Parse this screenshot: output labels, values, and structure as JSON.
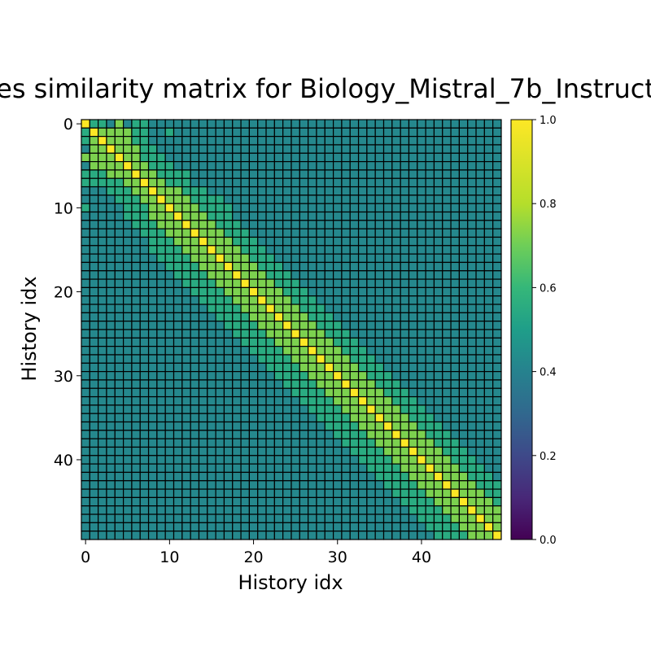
{
  "chart_data": {
    "type": "heatmap",
    "title": "es similarity matrix for Biology_Mistral_7b_Instruct",
    "xlabel": "History idx",
    "ylabel": "History idx",
    "size": 50,
    "x_ticks": [
      "0",
      "10",
      "20",
      "30",
      "40"
    ],
    "y_ticks": [
      "0",
      "10",
      "20",
      "30",
      "40"
    ],
    "colorbar": {
      "vmin": 0.0,
      "vmax": 1.0,
      "ticks": [
        "0.0",
        "0.2",
        "0.4",
        "0.6",
        "0.8",
        "1.0"
      ]
    },
    "colormap": "viridis",
    "cell_edge_color": "#000000",
    "diagonal_value": 1.0,
    "matrix_rows": [
      "SMMLHLMMLLLLLLLLLLLLLLLLLLLLLLLLLLLLLLLLLLLLLLLLLL",
      "MSHHHHMMLLMLLLLLLLLLLLLLLLLLLLLLLLLLLLLLLLLLLLLLLL",
      "MHSHHHMMLLLLLLLLLLLLLLLLLLLLLLLLLLLLLLLLLLLLLLLLLL",
      "LHHSHHHMMLLLLLLLLLLLLLLLLLLLLLLLLLLLLLLLLLLLLLLLLL",
      "HHHHSHHMMMLLLLLLLLLLLLLLLLLLLLLLLLLLLLLLLLLLLLLLLL",
      "LHHHHSHHMMMLLLLLLLLLLLLLLLLLLLLLLLLLLLLLLLLLLLLLLL",
      "MMMHHHSHHMMMMLLLLLLLLLLLLLLLLLLLLLLLLLLLLLLLLLLLLL",
      "MMMMMHHSHHMMMLLLLLLLLLLLLLLLLLLLLLLLLLLLLLLLLLLLLL",
      "LLLMMMHHSHHHMMMLLLLLLLLLLLLLLLLLLLLLLLLLLLLLLLLLLL",
      "LLLLMMMHHSHHHMMMMLLLLLLLLLLLLLLLLLLLLLLLLLLLLLLLLL",
      "MLLLLMMMHHSHHHMMMMLLLLLLLLLLLLLLLLLLLLLLLLLLLLLLLL",
      "LLLLLMMMHHHSHHHMMMLLLLLLLLLLLLLLLLLLLLLLLLLLLLLLLL",
      "LLLLLLMMMHHHSHHHMMMLLLLLLLLLLLLLLLLLLLLLLLLLLLLLLL",
      "LLLLLLLMMMHHHSHHHMMMLLLLLLLLLLLLLLLLLLLLLLLLLLLLLL",
      "LLLLLLLLMMMHHHSHHHMMMLLLLLLLLLLLLLLLLLLLLLLLLLLLLL",
      "LLLLLLLLMMMMHHHSHHHMMMLLLLLLLLLLLLLLLLLLLLLLLLLLLL",
      "LLLLLLLLLMMMMHHHSHHHMMMLLLLLLLLLLLLLLLLLLLLLLLLLLL",
      "LLLLLLLLLLMMMMHHHSHHHMMMLLLLLLLLLLLLLLLLLLLLLLLLLL",
      "LLLLLLLLLLLMMMMHHHSHHHMMMLLLLLLLLLLLLLLLLLLLLLLLLL",
      "LLLLLLLLLLLLMMMMHHHSHHHMMMLLLLLLLLLLLLLLLLLLLLLLLL",
      "LLLLLLLLLLLLLMMMMHHHSHHHMMMLLLLLLLLLLLLLLLLLLLLLLL",
      "LLLLLLLLLLLLLLMMMMHHHSHHHMMMLLLLLLLLLLLLLLLLLLLLLL",
      "LLLLLLLLLLLLLLLMMMMHHHSHHHMMMLLLLLLLLLLLLLLLLLLLLL",
      "LLLLLLLLLLLLLLLLMMMMHHHSHHHMMMLLLLLLLLLLLLLLLLLLLL",
      "LLLLLLLLLLLLLLLLLMMMMHHHSHHHMMMLLLLLLLLLLLLLLLLLLL",
      "LLLLLLLLLLLLLLLLLLMMMMHHHSHHHMMMLLLLLLLLLLLLLLLLLL",
      "LLLLLLLLLLLLLLLLLLLMMMMHHHSHHHMMMLLLLLLLLLLLLLLLLL",
      "LLLLLLLLLLLLLLLLLLLLMMMMHHHSHHHMMMLLLLLLLLLLLLLLLL",
      "LLLLLLLLLLLLLLLLLLLLLMMMMHHHSHHHMMMLLLLLLLLLLLLLLL",
      "LLLLLLLLLLLLLLLLLLLLLLMMMMHHHSHHHMMMLLLLLLLLLLLLLL",
      "LLLLLLLLLLLLLLLLLLLLLLLMMMMHHHSHHHMMMLLLLLLLLLLLLL",
      "LLLLLLLLLLLLLLLLLLLLLLLLMMMMHHHSHHHMMMLLLLLLLLLLLL",
      "LLLLLLLLLLLLLLLLLLLLLLLLLMMMMHHHSHHHMMMLLLLLLLLLLL",
      "LLLLLLLLLLLLLLLLLLLLLLLLLLMMMMHHHSHHHMMMLLLLLLLLLL",
      "LLLLLLLLLLLLLLLLLLLLLLLLLLLMMMMHHHSHHHMMMLLLLLLLLL",
      "LLLLLLLLLLLLLLLLLLLLLLLLLLLLMMMMHHHSHHHMMMLLLLLLLL",
      "LLLLLLLLLLLLLLLLLLLLLLLLLLLLLMMMMHHHSHHHMMMLLLLLLL",
      "LLLLLLLLLLLLLLLLLLLLLLLLLLLLLLMMMMHHHSHHHMMMLLLLLL",
      "LLLLLLLLLLLLLLLLLLLLLLLLLLLLLLLMMMMHHHSHHHMMMLLLLL",
      "LLLLLLLLLLLLLLLLLLLLLLLLLLLLLLLLMMMMHHHSHHHMMMLLLL",
      "LLLLLLLLLLLLLLLLLLLLLLLLLLLLLLLLLMMMMHHHSHHHMMMLLL",
      "LLLLLLLLLLLLLLLLLLLLLLLLLLLLLLLLLLMMMMHHHSHHHMMMLL",
      "LLLLLLLLLLLLLLLLLLLLLLLLLLLLLLLLLLLMMMMHHHSHHHMMML",
      "LLLLLLLLLLLLLLLLLLLLLLLLLLLLLLLLLLLLMMMMHHHSHHHMMM",
      "LLLLLLLLLLLLLLLLLLLLLLLLLLLLLLLLLLLLLMMMMHHHSHHHMM",
      "LLLLLLLLLLLLLLLLLLLLLLLLLLLLLLLLLLLLLLMMMMHHHSHHHM",
      "LLLLLLLLLLLLLLLLLLLLLLLLLLLLLLLLLLLLLLLMMMMHHHSHHH",
      "LLLLLLLLLLLLLLLLLLLLLLLLLLLLLLLLLLLLLLLLMMMMHHHSHH",
      "LLLLLLLLLLLLLLLLLLLLLLLLLLLLLLLLLLLLLLLLLMMMMHHHSH",
      "LLLLLLLLLLLLLLLLLLLLLLLLLLLLLLLLLLLLLLLLLLMMMMHHHS"
    ],
    "value_codes": {
      "S": 1.0,
      "H": 0.72,
      "M": 0.55,
      "L": 0.42
    }
  }
}
